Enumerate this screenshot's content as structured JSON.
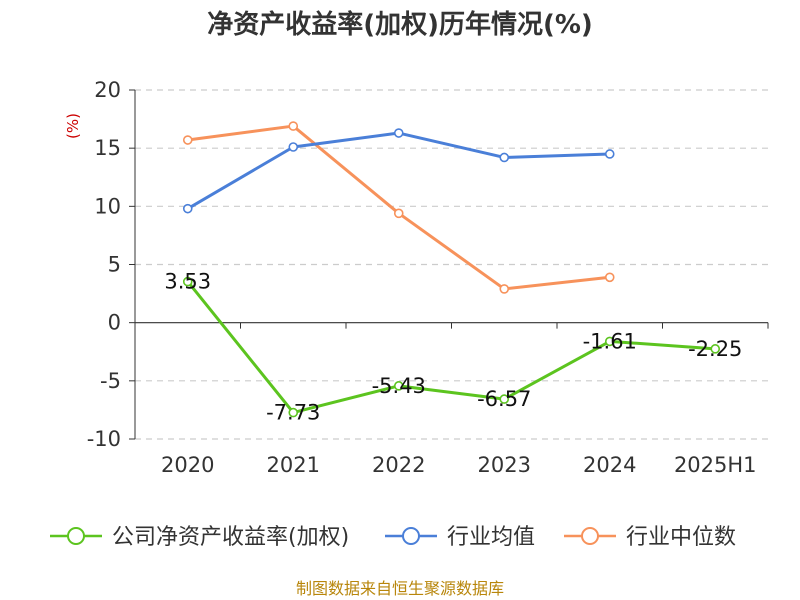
{
  "chart_data": {
    "type": "line",
    "title": "净资产收益率(加权)历年情况(%)",
    "ylabel": "(%)",
    "categories": [
      "2020",
      "2021",
      "2022",
      "2023",
      "2024",
      "2025H1"
    ],
    "ylim": [
      -10,
      20
    ],
    "yticks": [
      20,
      15,
      10,
      5,
      0,
      -5,
      -10
    ],
    "grid": true,
    "legend_position": "bottom",
    "series": [
      {
        "name": "公司净资产收益率(加权)",
        "color": "#5cc41f",
        "values": [
          3.53,
          -7.73,
          -5.43,
          -6.57,
          -1.61,
          -2.25
        ],
        "labels": [
          "3.53",
          "-7.73",
          "-5.43",
          "-6.57",
          "-1.61",
          "-2.25"
        ]
      },
      {
        "name": "行业均值",
        "color": "#4a7fd8",
        "values": [
          9.8,
          15.1,
          16.3,
          14.2,
          14.5,
          null
        ]
      },
      {
        "name": "行业中位数",
        "color": "#f7925b",
        "values": [
          15.7,
          16.9,
          9.4,
          2.9,
          3.9,
          null
        ]
      }
    ]
  },
  "footer": {
    "source": "制图数据来自恒生聚源数据库"
  }
}
